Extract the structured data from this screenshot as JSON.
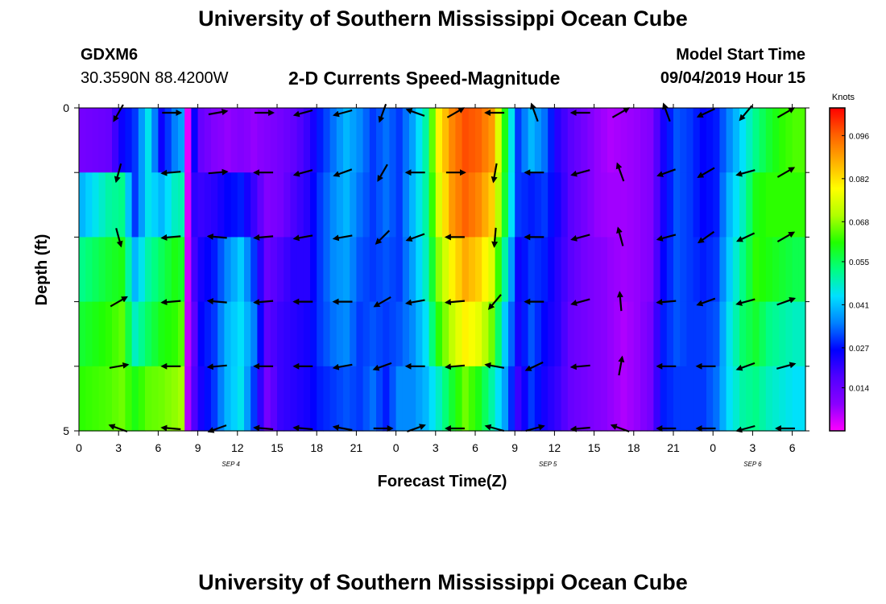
{
  "header": {
    "title": "University of Southern Mississippi Ocean Cube",
    "station_id": "GDXM6",
    "station_coords": "30.3590N 88.4200W",
    "subtitle": "2-D Currents Speed-Magnitude",
    "model_start_label": "Model Start Time",
    "model_start_value": "09/04/2019 Hour 15"
  },
  "footer": {
    "title": "University of Southern Mississippi Ocean Cube"
  },
  "colors": {
    "arrow": "#000000",
    "scale": [
      "#ff00ff",
      "#8a00ff",
      "#5000ff",
      "#0000ff",
      "#0080ff",
      "#00e0ff",
      "#00ff80",
      "#20ff00",
      "#b0ff00",
      "#ffff00",
      "#ffb000",
      "#ff6000",
      "#ff0000"
    ]
  },
  "chart_data": {
    "type": "heatmap",
    "xlabel": "Forecast Time(Z)",
    "ylabel": "Depth (ft)",
    "xticks": [
      "0",
      "3",
      "6",
      "9",
      "12",
      "15",
      "18",
      "21",
      "0",
      "3",
      "6",
      "9",
      "12",
      "15",
      "18",
      "21",
      "0",
      "3",
      "6"
    ],
    "date_labels": [
      {
        "label": "SEP 4",
        "hour_index": 11.5
      },
      {
        "label": "SEP 5",
        "hour_index": 35.5
      },
      {
        "label": "SEP 6",
        "hour_index": 51
      }
    ],
    "yticks": [
      "0",
      "5"
    ],
    "ylim": [
      0,
      5
    ],
    "hours": 55,
    "depth_rows": 5,
    "colorbar": {
      "title": "Knots",
      "ticks": [
        "0.096",
        "0.082",
        "0.068",
        "0.055",
        "0.041",
        "0.027",
        "0.014"
      ],
      "tick_values": [
        0.096,
        0.082,
        0.068,
        0.055,
        0.041,
        0.027,
        0.014
      ],
      "range": [
        0,
        0.105
      ]
    },
    "speed_profile": [
      {
        "h": 0,
        "s": [
          0.012,
          0.04,
          0.052,
          0.058,
          0.062
        ]
      },
      {
        "h": 2,
        "s": [
          0.014,
          0.05,
          0.058,
          0.062,
          0.064
        ]
      },
      {
        "h": 3,
        "s": [
          0.025,
          0.052,
          0.06,
          0.065,
          0.066
        ]
      },
      {
        "h": 4,
        "s": [
          0.03,
          0.03,
          0.04,
          0.048,
          0.06
        ]
      },
      {
        "h": 5,
        "s": [
          0.045,
          0.045,
          0.05,
          0.055,
          0.065
        ]
      },
      {
        "h": 6,
        "s": [
          0.025,
          0.04,
          0.055,
          0.06,
          0.066
        ]
      },
      {
        "h": 7,
        "s": [
          0.035,
          0.048,
          0.06,
          0.062,
          0.068
        ]
      },
      {
        "h": 7.8,
        "s": [
          0.04,
          0.05,
          0.058,
          0.066,
          0.07
        ]
      },
      {
        "h": 8,
        "s": [
          0.002,
          0.003,
          0.004,
          0.005,
          0.006
        ]
      },
      {
        "h": 8.6,
        "s": [
          0.03,
          0.025,
          0.022,
          0.018,
          0.02
        ]
      },
      {
        "h": 9,
        "s": [
          0.014,
          0.02,
          0.024,
          0.026,
          0.024
        ]
      },
      {
        "h": 10,
        "s": [
          0.01,
          0.022,
          0.028,
          0.03,
          0.03
        ]
      },
      {
        "h": 11,
        "s": [
          0.008,
          0.026,
          0.036,
          0.04,
          0.04
        ]
      },
      {
        "h": 12,
        "s": [
          0.01,
          0.028,
          0.042,
          0.044,
          0.045
        ]
      },
      {
        "h": 13,
        "s": [
          0.008,
          0.02,
          0.03,
          0.035,
          0.03
        ]
      },
      {
        "h": 14,
        "s": [
          0.01,
          0.01,
          0.014,
          0.016,
          0.012
        ]
      },
      {
        "h": 15,
        "s": [
          0.012,
          0.012,
          0.018,
          0.02,
          0.02
        ]
      },
      {
        "h": 16,
        "s": [
          0.015,
          0.018,
          0.022,
          0.022,
          0.022
        ]
      },
      {
        "h": 17,
        "s": [
          0.02,
          0.022,
          0.022,
          0.024,
          0.024
        ]
      },
      {
        "h": 18,
        "s": [
          0.028,
          0.03,
          0.03,
          0.03,
          0.028
        ]
      },
      {
        "h": 19,
        "s": [
          0.034,
          0.036,
          0.036,
          0.034,
          0.03
        ]
      },
      {
        "h": 20,
        "s": [
          0.04,
          0.04,
          0.038,
          0.036,
          0.032
        ]
      },
      {
        "h": 21,
        "s": [
          0.036,
          0.034,
          0.032,
          0.03,
          0.03
        ]
      },
      {
        "h": 22,
        "s": [
          0.03,
          0.03,
          0.03,
          0.032,
          0.034
        ]
      },
      {
        "h": 23,
        "s": [
          0.034,
          0.034,
          0.032,
          0.03,
          0.028
        ]
      },
      {
        "h": 24,
        "s": [
          0.03,
          0.03,
          0.03,
          0.032,
          0.036
        ]
      },
      {
        "h": 25,
        "s": [
          0.038,
          0.04,
          0.038,
          0.036,
          0.036
        ]
      },
      {
        "h": 26,
        "s": [
          0.05,
          0.05,
          0.048,
          0.044,
          0.04
        ]
      },
      {
        "h": 27,
        "s": [
          0.08,
          0.075,
          0.068,
          0.062,
          0.048
        ]
      },
      {
        "h": 28,
        "s": [
          0.092,
          0.09,
          0.08,
          0.072,
          0.058
        ]
      },
      {
        "h": 29,
        "s": [
          0.098,
          0.096,
          0.088,
          0.08,
          0.066
        ]
      },
      {
        "h": 30,
        "s": [
          0.096,
          0.092,
          0.084,
          0.076,
          0.06
        ]
      },
      {
        "h": 31,
        "s": [
          0.09,
          0.084,
          0.075,
          0.066,
          0.05
        ]
      },
      {
        "h": 32,
        "s": [
          0.06,
          0.058,
          0.05,
          0.042,
          0.038
        ]
      },
      {
        "h": 33,
        "s": [
          0.03,
          0.03,
          0.025,
          0.024,
          0.02
        ]
      },
      {
        "h": 34,
        "s": [
          0.04,
          0.028,
          0.03,
          0.032,
          0.03
        ]
      },
      {
        "h": 35,
        "s": [
          0.034,
          0.03,
          0.028,
          0.026,
          0.024
        ]
      },
      {
        "h": 36,
        "s": [
          0.022,
          0.024,
          0.022,
          0.022,
          0.02
        ]
      },
      {
        "h": 37,
        "s": [
          0.016,
          0.016,
          0.016,
          0.014,
          0.014
        ]
      },
      {
        "h": 38,
        "s": [
          0.012,
          0.012,
          0.012,
          0.012,
          0.012
        ]
      },
      {
        "h": 39,
        "s": [
          0.008,
          0.008,
          0.01,
          0.01,
          0.01
        ]
      },
      {
        "h": 40,
        "s": [
          0.006,
          0.007,
          0.008,
          0.008,
          0.008
        ]
      },
      {
        "h": 41,
        "s": [
          0.007,
          0.007,
          0.007,
          0.006,
          0.006
        ]
      },
      {
        "h": 42,
        "s": [
          0.008,
          0.008,
          0.008,
          0.008,
          0.008
        ]
      },
      {
        "h": 43,
        "s": [
          0.01,
          0.01,
          0.01,
          0.012,
          0.012
        ]
      },
      {
        "h": 44,
        "s": [
          0.024,
          0.024,
          0.026,
          0.028,
          0.028
        ]
      },
      {
        "h": 45,
        "s": [
          0.032,
          0.032,
          0.032,
          0.032,
          0.03
        ]
      },
      {
        "h": 46,
        "s": [
          0.03,
          0.03,
          0.03,
          0.03,
          0.03
        ]
      },
      {
        "h": 47,
        "s": [
          0.026,
          0.026,
          0.028,
          0.03,
          0.03
        ]
      },
      {
        "h": 48,
        "s": [
          0.028,
          0.028,
          0.03,
          0.032,
          0.034
        ]
      },
      {
        "h": 49,
        "s": [
          0.036,
          0.04,
          0.042,
          0.045,
          0.044
        ]
      },
      {
        "h": 50,
        "s": [
          0.044,
          0.048,
          0.052,
          0.054,
          0.05
        ]
      },
      {
        "h": 51,
        "s": [
          0.052,
          0.06,
          0.062,
          0.058,
          0.052
        ]
      },
      {
        "h": 52,
        "s": [
          0.058,
          0.062,
          0.06,
          0.052,
          0.048
        ]
      },
      {
        "h": 53,
        "s": [
          0.062,
          0.062,
          0.058,
          0.05,
          0.046
        ]
      },
      {
        "h": 54,
        "s": [
          0.064,
          0.062,
          0.056,
          0.048,
          0.044
        ]
      }
    ],
    "arrow_hours": [
      2.5,
      6.5,
      10,
      13.5,
      16.5,
      19.5,
      22.5,
      25,
      28,
      31,
      34,
      37.5,
      40.5,
      44,
      47,
      50,
      53
    ],
    "arrow_directions_deg": [
      [
        120,
        0,
        350,
        0,
        165,
        165,
        110,
        200,
        330,
        180,
        250,
        180,
        330,
        250,
        155,
        130,
        330
      ],
      [
        105,
        175,
        355,
        180,
        165,
        160,
        120,
        180,
        0,
        100,
        180,
        165,
        250,
        160,
        150,
        165,
        330
      ],
      [
        75,
        175,
        185,
        175,
        170,
        170,
        135,
        160,
        180,
        95,
        180,
        165,
        255,
        165,
        145,
        155,
        330
      ],
      [
        330,
        175,
        185,
        175,
        180,
        180,
        150,
        170,
        175,
        130,
        180,
        165,
        265,
        175,
        160,
        165,
        340
      ],
      [
        350,
        180,
        175,
        180,
        180,
        170,
        160,
        180,
        175,
        190,
        155,
        175,
        280,
        180,
        180,
        160,
        345
      ],
      [
        200,
        185,
        160,
        185,
        185,
        190,
        0,
        340,
        180,
        195,
        345,
        175,
        200,
        180,
        180,
        165,
        180
      ]
    ]
  }
}
